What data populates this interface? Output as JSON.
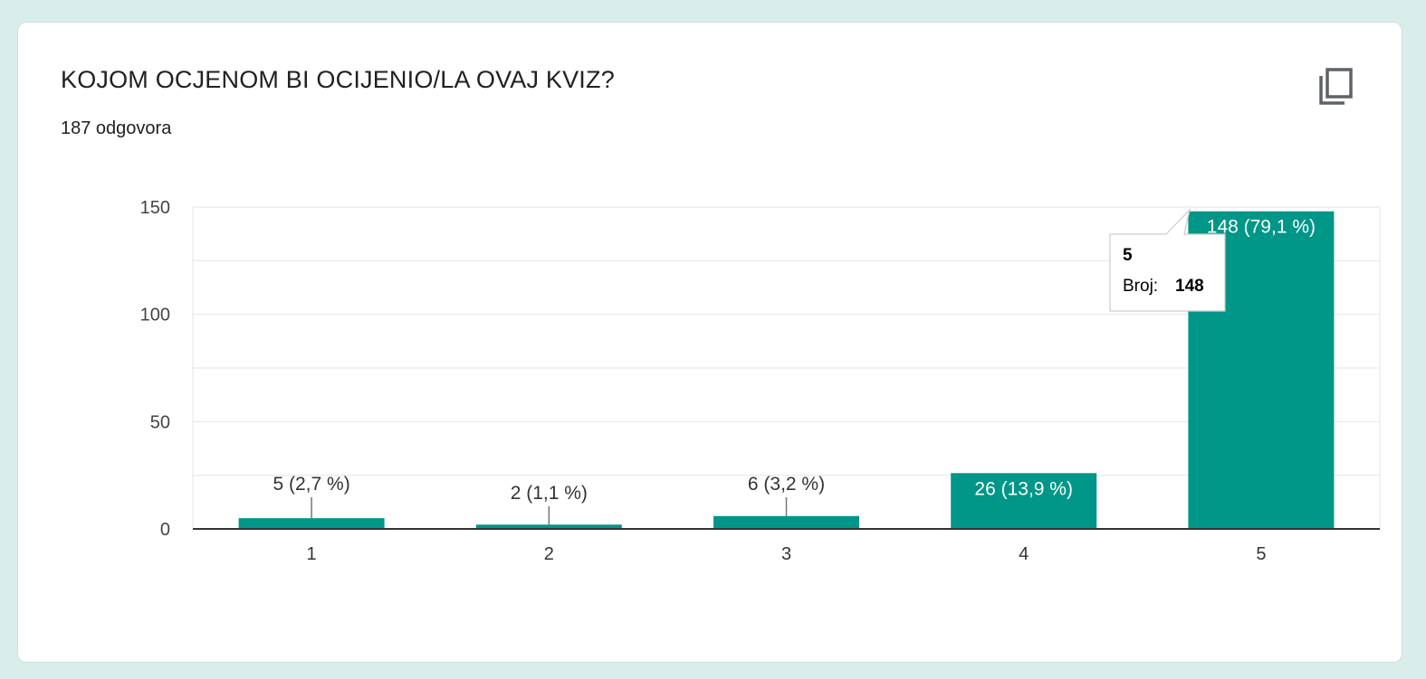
{
  "card": {
    "title": "KOJOM OCJENOM BI OCIJENIO/LA OVAJ KVIZ?",
    "responses": "187 odgovora",
    "copy_icon": "copy-icon"
  },
  "colors": {
    "bar": "#009688",
    "grid": "#e6e6e6",
    "axis": "#333333",
    "background": "#d9eeeb"
  },
  "chart_data": {
    "type": "bar",
    "categories": [
      "1",
      "2",
      "3",
      "4",
      "5"
    ],
    "values": [
      5,
      2,
      6,
      26,
      148
    ],
    "data_labels": [
      "5 (2,7 %)",
      "2 (1,1 %)",
      "6 (3,2 %)",
      "26 (13,9 %)",
      "148 (79,1 %)"
    ],
    "y_ticks": [
      "0",
      "50",
      "100",
      "150"
    ],
    "ylim": [
      0,
      150
    ],
    "grid": true,
    "tooltip": {
      "category": "5",
      "label": "Broj:",
      "value": "148"
    }
  }
}
